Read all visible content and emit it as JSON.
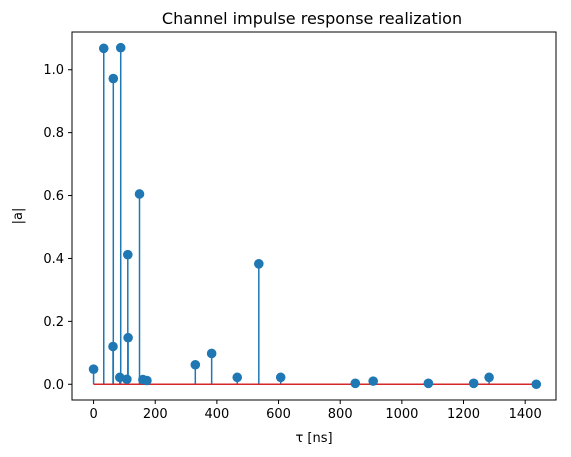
{
  "chart_data": {
    "type": "stem",
    "title": "Channel impulse response realization",
    "xlabel": "τ [ns]",
    "ylabel": "|a|",
    "xlim": [
      -70,
      1500
    ],
    "ylim": [
      -0.05,
      1.12
    ],
    "xticks": [
      0,
      200,
      400,
      600,
      800,
      1000,
      1200,
      1400
    ],
    "yticks": [
      0.0,
      0.2,
      0.4,
      0.6,
      0.8,
      1.0
    ],
    "xtick_labels": [
      "0",
      "200",
      "400",
      "600",
      "800",
      "1000",
      "1200",
      "1400"
    ],
    "ytick_labels": [
      "0.0",
      "0.2",
      "0.4",
      "0.6",
      "0.8",
      "1.0"
    ],
    "grid": false,
    "baseline": 0,
    "colors": {
      "stem": "#1f77b4",
      "marker": "#1f77b4",
      "baseline": "#d62728"
    },
    "points": [
      {
        "x": 0,
        "y": 0.048
      },
      {
        "x": 33,
        "y": 1.068
      },
      {
        "x": 63,
        "y": 0.12
      },
      {
        "x": 64,
        "y": 0.972
      },
      {
        "x": 85,
        "y": 0.022
      },
      {
        "x": 88,
        "y": 1.07
      },
      {
        "x": 108,
        "y": 0.016
      },
      {
        "x": 111,
        "y": 0.412
      },
      {
        "x": 112,
        "y": 0.148
      },
      {
        "x": 149,
        "y": 0.605
      },
      {
        "x": 160,
        "y": 0.015
      },
      {
        "x": 173,
        "y": 0.012
      },
      {
        "x": 330,
        "y": 0.062
      },
      {
        "x": 383,
        "y": 0.098
      },
      {
        "x": 466,
        "y": 0.022
      },
      {
        "x": 536,
        "y": 0.383
      },
      {
        "x": 607,
        "y": 0.022
      },
      {
        "x": 849,
        "y": 0.003
      },
      {
        "x": 907,
        "y": 0.01
      },
      {
        "x": 1086,
        "y": 0.003
      },
      {
        "x": 1233,
        "y": 0.003
      },
      {
        "x": 1283,
        "y": 0.022
      },
      {
        "x": 1436,
        "y": 0.0
      }
    ]
  }
}
